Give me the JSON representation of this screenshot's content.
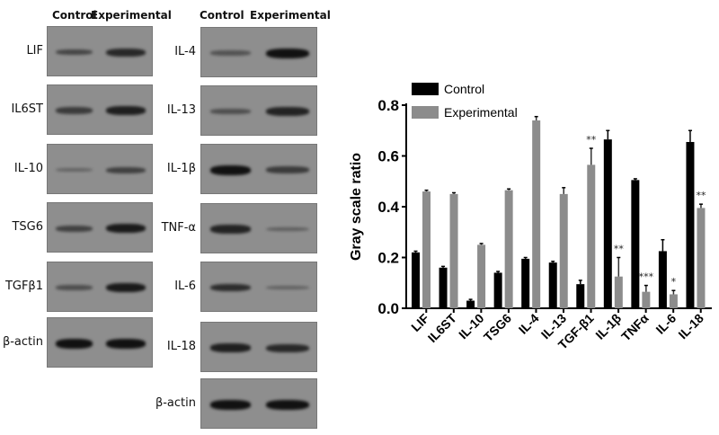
{
  "blots": {
    "header_control": "Control",
    "header_experimental": "Experimental",
    "left": [
      {
        "label": "LIF",
        "control": 0.45,
        "experimental": 0.75
      },
      {
        "label": "IL6ST",
        "control": 0.55,
        "experimental": 0.85
      },
      {
        "label": "IL-10",
        "control": 0.12,
        "experimental": 0.5
      },
      {
        "label": "TSG6",
        "control": 0.5,
        "experimental": 0.9
      },
      {
        "label": "TGFβ1",
        "control": 0.35,
        "experimental": 0.9
      },
      {
        "label": "β-actin",
        "control": 1.0,
        "experimental": 1.0
      }
    ],
    "right": [
      {
        "label": "IL-4",
        "control": 0.3,
        "experimental": 1.0
      },
      {
        "label": "IL-13",
        "control": 0.35,
        "experimental": 0.8
      },
      {
        "label": "IL-1β",
        "control": 1.0,
        "experimental": 0.55
      },
      {
        "label": "TNF-α",
        "control": 0.8,
        "experimental": 0.2
      },
      {
        "label": "IL-6",
        "control": 0.7,
        "experimental": 0.15
      },
      {
        "label": "IL-18",
        "control": 0.85,
        "experimental": 0.75
      },
      {
        "label": "β-actin",
        "control": 1.0,
        "experimental": 1.0
      }
    ]
  },
  "chart_data": {
    "type": "bar",
    "ylabel": "Gray scale ratio",
    "xlabel": "",
    "ylim": [
      0,
      0.8
    ],
    "yticks": [
      "0.0",
      "0.2",
      "0.4",
      "0.6",
      "0.8"
    ],
    "legend_position": "top-left",
    "categories": [
      "LIF",
      "IL6ST",
      "IL-10",
      "TSG6",
      "IL-4",
      "IL-13",
      "TGF-β1",
      "IL-1β",
      "TNFα",
      "IL-6",
      "IL-18"
    ],
    "series": [
      {
        "name": "Control",
        "color": "#000000",
        "values": [
          0.22,
          0.16,
          0.03,
          0.14,
          0.195,
          0.18,
          0.095,
          0.665,
          0.505,
          0.225,
          0.655
        ],
        "errors": [
          0.005,
          0.005,
          0.005,
          0.005,
          0.005,
          0.005,
          0.015,
          0.035,
          0.005,
          0.045,
          0.045
        ]
      },
      {
        "name": "Experimental",
        "color": "#8c8c8c",
        "values": [
          0.46,
          0.45,
          0.25,
          0.465,
          0.74,
          0.45,
          0.565,
          0.125,
          0.065,
          0.055,
          0.395
        ],
        "errors": [
          0.005,
          0.005,
          0.005,
          0.005,
          0.015,
          0.025,
          0.065,
          0.075,
          0.025,
          0.015,
          0.015
        ]
      }
    ],
    "significance": [
      "",
      "",
      "",
      "",
      "",
      "",
      "**",
      "**",
      "***",
      "*",
      "**"
    ]
  }
}
